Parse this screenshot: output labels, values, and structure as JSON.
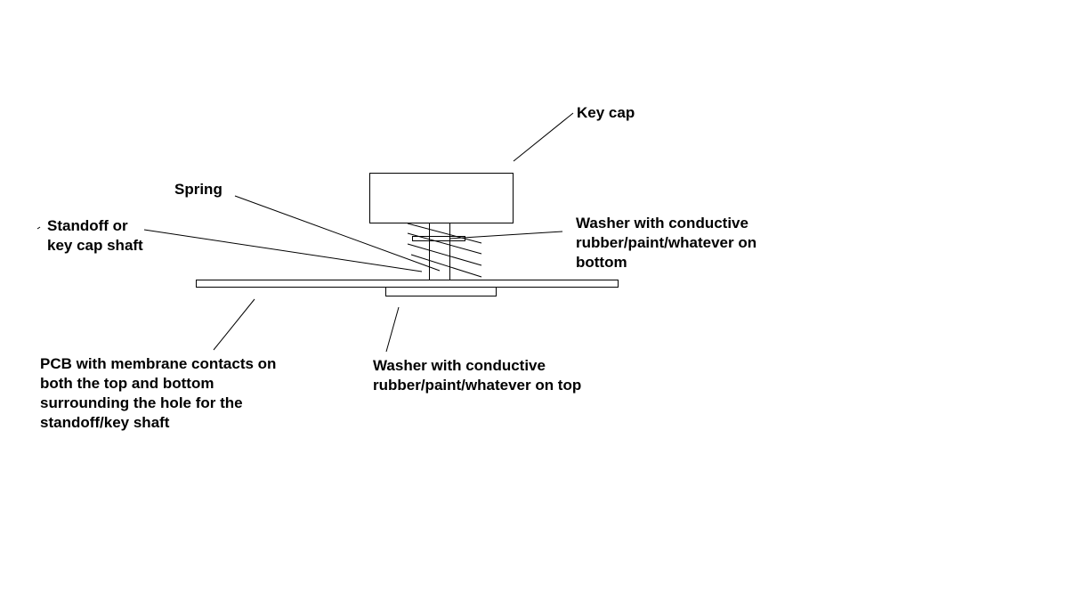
{
  "labels": {
    "key_cap": "Key cap",
    "spring": "Spring",
    "standoff": [
      "Standoff or",
      "key cap shaft"
    ],
    "washer_bottom": [
      "Washer with conductive",
      "rubber/paint/whatever on",
      "bottom"
    ],
    "pcb": [
      "PCB with membrane contacts on",
      "both the top and bottom",
      "surrounding the hole for the",
      "standoff/key shaft"
    ],
    "washer_top": [
      "Washer with conductive",
      "rubber/paint/whatever on top"
    ]
  },
  "colors": {
    "ink": "#000000",
    "background": "#ffffff"
  }
}
